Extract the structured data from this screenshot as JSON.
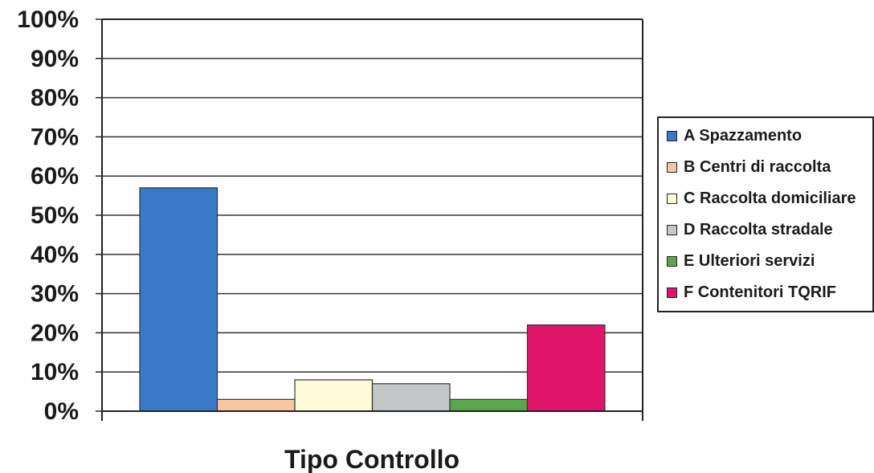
{
  "chart_data": {
    "type": "bar",
    "xlabel": "Tipo Controllo",
    "ylabel": "",
    "ylim": [
      0,
      100
    ],
    "yticks": [
      "0%",
      "10%",
      "20%",
      "30%",
      "40%",
      "50%",
      "60%",
      "70%",
      "80%",
      "90%",
      "100%"
    ],
    "grid": true,
    "legend_position": "right",
    "series": [
      {
        "name": "A Spazzamento",
        "value": 57,
        "color": "#3a78c8"
      },
      {
        "name": "B Centri di raccolta",
        "value": 3,
        "color": "#f9c79f"
      },
      {
        "name": "C Raccolta domiciliare",
        "value": 8,
        "color": "#fefbd8"
      },
      {
        "name": "D Raccolta stradale",
        "value": 7,
        "color": "#c4c6c8"
      },
      {
        "name": "E Ulteriori servizi",
        "value": 3,
        "color": "#5aa74a"
      },
      {
        "name": "F Contenitori TQRIF",
        "value": 22,
        "color": "#e0156a"
      }
    ]
  }
}
